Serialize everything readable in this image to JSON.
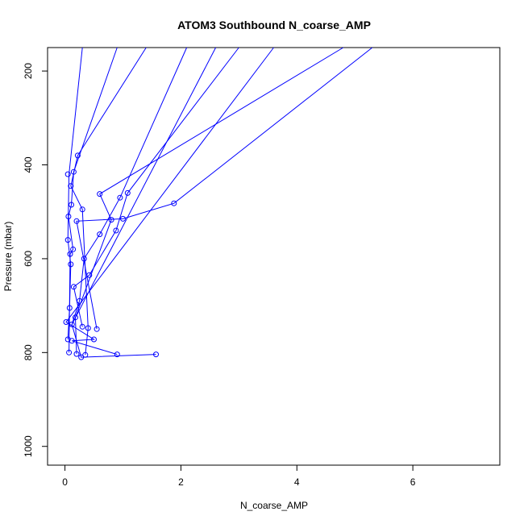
{
  "chart_data": {
    "type": "scatter",
    "title": "ATOM3 Southbound N_coarse_AMP",
    "xlabel": "N_coarse_AMP",
    "ylabel": "Pressure (mbar)",
    "xlim": [
      -0.3,
      7.5
    ],
    "ylim": [
      1040,
      150
    ],
    "y_reversed": true,
    "x_ticks": [
      "0",
      "2",
      "4",
      "6"
    ],
    "y_ticks": [
      "200",
      "400",
      "600",
      "800",
      "1000"
    ],
    "grid": false,
    "legend": "none",
    "series_color": "#0000ff",
    "series": [
      {
        "points": [
          {
            "x": 0.05,
            "y": 772
          },
          {
            "x": 0.12,
            "y": 740
          },
          {
            "x": 0.3,
            "y": 745
          },
          {
            "x": 0.55,
            "y": 750
          },
          {
            "x": 0.08,
            "y": 705
          },
          {
            "x": 0.25,
            "y": 690
          },
          {
            "x": 0.15,
            "y": 660
          },
          {
            "x": 0.42,
            "y": 635
          },
          {
            "x": 0.1,
            "y": 612
          },
          {
            "x": 0.33,
            "y": 600
          },
          {
            "x": 0.6,
            "y": 548
          },
          {
            "x": 0.88,
            "y": 540
          },
          {
            "x": 1.0,
            "y": 515
          },
          {
            "x": 0.8,
            "y": 517
          },
          {
            "x": 0.95,
            "y": 470
          },
          {
            "x": 1.08,
            "y": 460
          },
          {
            "x": 1.88,
            "y": 482
          },
          {
            "x": 0.6,
            "y": 462
          },
          {
            "x": 0.05,
            "y": 560
          },
          {
            "x": 0.2,
            "y": 520
          },
          {
            "x": 0.3,
            "y": 495
          },
          {
            "x": 0.1,
            "y": 445
          },
          {
            "x": 0.05,
            "y": 420
          },
          {
            "x": 0.15,
            "y": 415
          },
          {
            "x": 0.22,
            "y": 380
          },
          {
            "x": 0.07,
            "y": 800
          },
          {
            "x": 0.2,
            "y": 803
          },
          {
            "x": 0.35,
            "y": 805
          },
          {
            "x": 0.9,
            "y": 804
          },
          {
            "x": 1.57,
            "y": 804
          },
          {
            "x": 0.28,
            "y": 810
          },
          {
            "x": 0.12,
            "y": 775
          },
          {
            "x": 0.5,
            "y": 772
          },
          {
            "x": 0.18,
            "y": 725
          },
          {
            "x": 0.4,
            "y": 748
          },
          {
            "x": 0.02,
            "y": 735
          },
          {
            "x": 0.09,
            "y": 590
          },
          {
            "x": 0.14,
            "y": 580
          },
          {
            "x": 0.06,
            "y": 510
          },
          {
            "x": 0.11,
            "y": 485
          }
        ]
      }
    ],
    "profile_traces": [
      {
        "x": [
          0.05,
          0.08,
          0.1,
          0.05,
          0.07,
          0.3
        ],
        "y": [
          772,
          705,
          612,
          560,
          420,
          150
        ]
      },
      {
        "x": [
          0.12,
          0.25,
          0.33,
          0.6,
          0.95,
          2.1
        ],
        "y": [
          740,
          690,
          600,
          548,
          470,
          150
        ]
      },
      {
        "x": [
          0.3,
          0.15,
          0.42,
          0.88,
          1.08,
          3.0
        ],
        "y": [
          745,
          660,
          635,
          540,
          460,
          150
        ]
      },
      {
        "x": [
          0.55,
          0.2,
          1.0,
          1.88,
          5.3
        ],
        "y": [
          750,
          520,
          515,
          482,
          150
        ]
      },
      {
        "x": [
          0.07,
          0.09,
          0.14,
          0.06,
          0.11,
          0.15,
          0.9
        ],
        "y": [
          800,
          590,
          580,
          510,
          485,
          415,
          150
        ]
      },
      {
        "x": [
          0.2,
          0.18,
          0.8,
          0.6,
          4.8
        ],
        "y": [
          803,
          725,
          517,
          462,
          150
        ]
      },
      {
        "x": [
          0.35,
          0.4,
          0.3,
          0.1,
          0.22,
          1.4
        ],
        "y": [
          805,
          748,
          495,
          445,
          380,
          150
        ]
      },
      {
        "x": [
          0.9,
          0.12,
          0.5,
          0.02,
          3.6
        ],
        "y": [
          804,
          775,
          772,
          735,
          150
        ]
      },
      {
        "x": [
          1.57,
          0.28,
          0.12,
          2.6
        ],
        "y": [
          804,
          810,
          740,
          150
        ]
      }
    ]
  }
}
